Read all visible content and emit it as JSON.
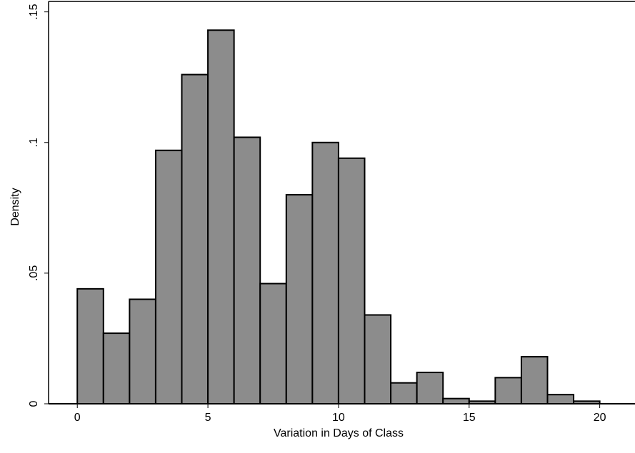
{
  "chart_data": {
    "type": "histogram",
    "x_label": "Variation in Days of Class",
    "y_label": "Density",
    "bins": [
      0,
      1,
      2,
      3,
      4,
      5,
      6,
      7,
      8,
      9,
      10,
      11,
      12,
      13,
      14,
      15,
      16,
      17,
      18,
      19,
      20
    ],
    "values": [
      0.044,
      0.027,
      0.04,
      0.097,
      0.126,
      0.143,
      0.102,
      0.046,
      0.08,
      0.1,
      0.094,
      0.034,
      0.008,
      0.012,
      0.002,
      0.001,
      0.01,
      0.018,
      0.0035,
      0.001
    ],
    "color": "#8c8c8c",
    "xlim": [
      -1.1,
      21.35
    ],
    "xticks": [
      0,
      5,
      10,
      15,
      20
    ],
    "ylim": [
      0,
      0.154
    ],
    "yticks": [
      0,
      {
        "value": 0.05,
        "label": ".05"
      },
      {
        "value": 0.1,
        "label": ".1"
      },
      {
        "value": 0.15,
        "label": ".15"
      }
    ]
  }
}
